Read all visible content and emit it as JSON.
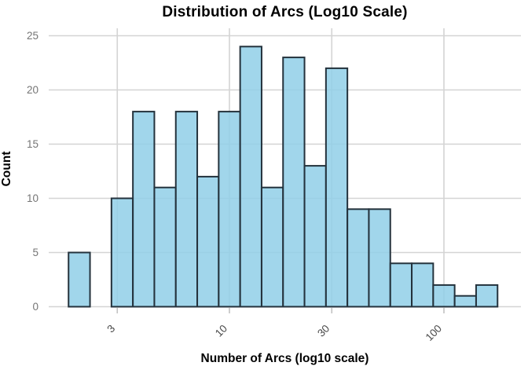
{
  "chart_data": {
    "type": "bar",
    "subtype": "histogram",
    "title": "Distribution of Arcs (Log10 Scale)",
    "xlabel": "Number of Arcs (log10 scale)",
    "ylabel": "Count",
    "x_scale": "log10",
    "x_ticks": [
      3,
      10,
      30,
      100
    ],
    "y_ticks": [
      0,
      5,
      10,
      15,
      20,
      25
    ],
    "ylim": [
      0,
      25
    ],
    "xlim_log10": [
      0.157,
      2.36
    ],
    "bin_edges_log10": [
      0.25,
      0.35,
      0.45,
      0.55,
      0.65,
      0.75,
      0.85,
      0.95,
      1.05,
      1.15,
      1.25,
      1.35,
      1.45,
      1.55,
      1.65,
      1.75,
      1.85,
      1.95,
      2.05,
      2.15,
      2.25
    ],
    "counts": [
      5,
      0,
      10,
      18,
      11,
      18,
      12,
      18,
      24,
      11,
      23,
      13,
      22,
      9,
      9,
      4,
      4,
      2,
      1,
      2
    ],
    "grid": true,
    "legend": "none",
    "colors": {
      "bar_fill": "rgba(144,207,231,0.85)",
      "bar_border": "#24323c",
      "gridline": "#d4d4d4",
      "tick_mark": "#c2c2c2",
      "x_tick_text": "#4a4a4a",
      "y_tick_text": "#757575",
      "title_text": "#000000"
    }
  }
}
